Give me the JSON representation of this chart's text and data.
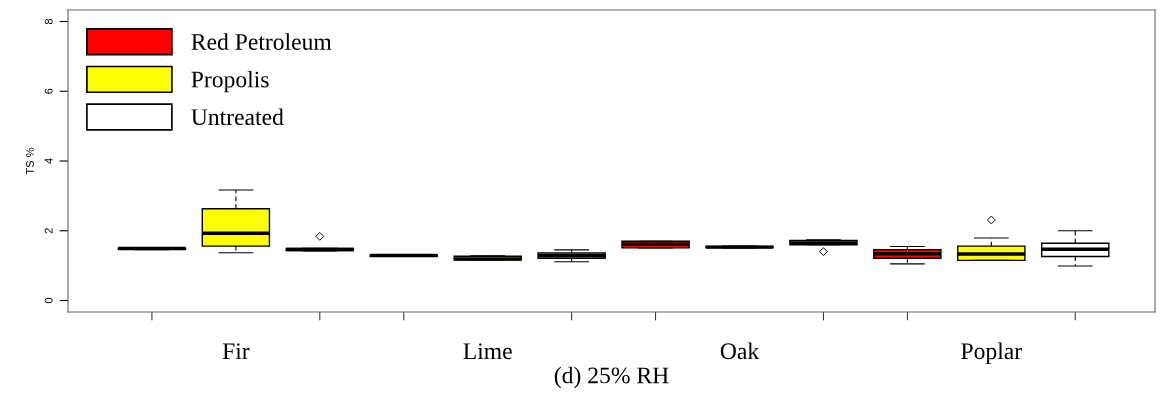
{
  "chart_data": {
    "type": "box",
    "xlabel": "(d) 25% RH",
    "ylabel": "TS %",
    "categories": [
      "Fir",
      "Lime",
      "Oak",
      "Poplar"
    ],
    "ylim": [
      -0.33,
      8.33
    ],
    "yticks": [
      0,
      2,
      4,
      6,
      8
    ],
    "grid": false,
    "legend": "top left",
    "series": [
      {
        "name": "Red Petroleum",
        "color": "#ff0000",
        "boxes": [
          {
            "low": 1.46,
            "q1": 1.47,
            "median": 1.49,
            "q3": 1.5,
            "high": 1.51
          },
          {
            "low": 1.26,
            "q1": 1.27,
            "median": 1.29,
            "q3": 1.3,
            "high": 1.31
          },
          {
            "low": 1.51,
            "q1": 1.51,
            "median": 1.61,
            "q3": 1.7,
            "high": 1.7
          },
          {
            "low": 1.05,
            "q1": 1.21,
            "median": 1.34,
            "q3": 1.46,
            "high": 1.55
          }
        ]
      },
      {
        "name": "Propolis",
        "color": "#ffff00",
        "boxes": [
          {
            "low": 1.37,
            "q1": 1.56,
            "median": 1.93,
            "q3": 2.63,
            "high": 3.17
          },
          {
            "low": 1.16,
            "q1": 1.17,
            "median": 1.19,
            "q3": 1.27,
            "high": 1.28
          },
          {
            "low": 1.51,
            "q1": 1.52,
            "median": 1.53,
            "q3": 1.55,
            "high": 1.56
          },
          {
            "low": 1.15,
            "q1": 1.15,
            "median": 1.33,
            "q3": 1.56,
            "high": 1.79,
            "outliers": [
              2.31
            ]
          }
        ]
      },
      {
        "name": "Untreated",
        "color": "#ffffff",
        "boxes": [
          {
            "low": 1.42,
            "q1": 1.43,
            "median": 1.46,
            "q3": 1.49,
            "high": 1.5,
            "outliers": [
              1.84
            ]
          },
          {
            "low": 1.11,
            "q1": 1.21,
            "median": 1.28,
            "q3": 1.36,
            "high": 1.45
          },
          {
            "low": 1.6,
            "q1": 1.6,
            "median": 1.65,
            "q3": 1.72,
            "high": 1.74,
            "outliers": [
              1.4
            ]
          },
          {
            "low": 0.99,
            "q1": 1.26,
            "median": 1.47,
            "q3": 1.64,
            "high": 2.0
          }
        ]
      }
    ]
  }
}
